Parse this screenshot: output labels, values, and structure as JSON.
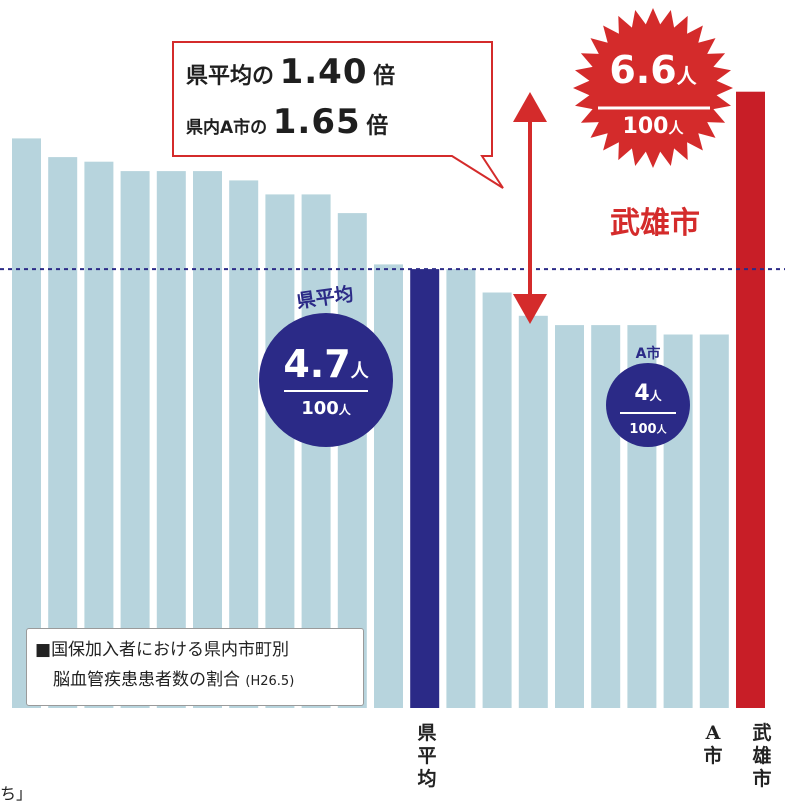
{
  "chart_data": {
    "type": "bar",
    "title": "国保加入者における県内市町別 脳血管疾患患者数の割合",
    "title_note": "(H26.5)",
    "unit": "人 / 100人",
    "average_line": 4.7,
    "bars": [
      {
        "value": 6.1,
        "kind": "other"
      },
      {
        "value": 5.9,
        "kind": "other"
      },
      {
        "value": 5.85,
        "kind": "other"
      },
      {
        "value": 5.75,
        "kind": "other"
      },
      {
        "value": 5.75,
        "kind": "other"
      },
      {
        "value": 5.75,
        "kind": "other"
      },
      {
        "value": 5.65,
        "kind": "other"
      },
      {
        "value": 5.5,
        "kind": "other"
      },
      {
        "value": 5.5,
        "kind": "other"
      },
      {
        "value": 5.3,
        "kind": "other"
      },
      {
        "value": 4.75,
        "kind": "other"
      },
      {
        "value": 4.7,
        "kind": "average",
        "label": "県平均"
      },
      {
        "value": 4.7,
        "kind": "other"
      },
      {
        "value": 4.45,
        "kind": "other"
      },
      {
        "value": 4.2,
        "kind": "other"
      },
      {
        "value": 4.1,
        "kind": "other"
      },
      {
        "value": 4.1,
        "kind": "other"
      },
      {
        "value": 4.1,
        "kind": "other"
      },
      {
        "value": 4.0,
        "kind": "other"
      },
      {
        "value": 4.0,
        "kind": "a-city",
        "label": "A市"
      },
      {
        "value": 6.6,
        "kind": "takeo",
        "label": "武雄市"
      }
    ],
    "ylim": [
      0,
      7.1
    ],
    "grid": false,
    "legend": "bottom-left",
    "colors": {
      "other": "#b7d4dd",
      "average": "#2b2a87",
      "takeo": "#c81e27",
      "a_city": "#b7d4dd",
      "dash": "#2b2a87"
    }
  },
  "callout": {
    "row1_prefix": "県平均の",
    "row1_value": "1.40",
    "row1_suffix": "倍",
    "row2_prefix": "県内A市の",
    "row2_value": "1.65",
    "row2_suffix": "倍"
  },
  "takeo_badge": {
    "value": "6.6",
    "unit": "人",
    "denominator": "100",
    "denominator_unit": "人",
    "name": "武雄市"
  },
  "avg_badge": {
    "label": "県平均",
    "value": "4.7",
    "unit": "人",
    "denominator": "100",
    "denominator_unit": "人"
  },
  "acity_badge": {
    "label": "A市",
    "value": "4",
    "unit": "人",
    "denominator": "100",
    "denominator_unit": "人"
  },
  "legend": {
    "marker": "■",
    "line1": "国保加入者における県内市町別",
    "line2": "脳血管疾患患者数の割合",
    "note": "(H26.5)"
  },
  "xlabels": {
    "average": "県平均",
    "a_city": "A市",
    "takeo": "武雄市"
  },
  "footer_fragment": "ち」"
}
